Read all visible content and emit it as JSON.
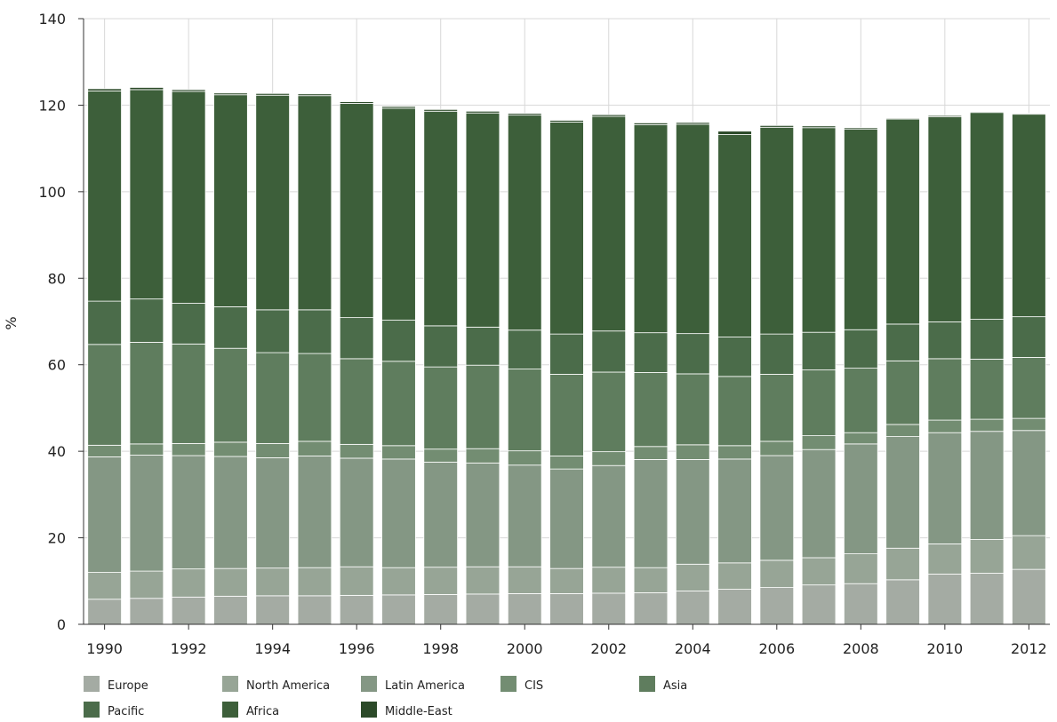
{
  "chart_data": {
    "type": "bar",
    "stacked": true,
    "title": "",
    "xlabel": "",
    "ylabel": "%",
    "ylim": [
      0,
      140
    ],
    "yticks": [
      0,
      20,
      40,
      60,
      80,
      100,
      120,
      140
    ],
    "grid": true,
    "legend_position": "bottom-left",
    "categories": [
      "1990",
      "1991",
      "1992",
      "1993",
      "1994",
      "1995",
      "1996",
      "1997",
      "1998",
      "1999",
      "2000",
      "2001",
      "2002",
      "2003",
      "2004",
      "2005",
      "2006",
      "2007",
      "2008",
      "2009",
      "2010",
      "2011",
      "2012"
    ],
    "x_tick_labels": [
      "1990",
      "1992",
      "1994",
      "1996",
      "1998",
      "2000",
      "2002",
      "2004",
      "2006",
      "2008",
      "2010",
      "2012"
    ],
    "series": [
      {
        "name": "Europe",
        "color": "#a4aba3",
        "values": [
          5.8,
          6.0,
          6.3,
          6.5,
          6.6,
          6.6,
          6.7,
          6.8,
          6.9,
          7.0,
          7.1,
          7.1,
          7.2,
          7.3,
          7.7,
          8.1,
          8.5,
          9.1,
          9.4,
          10.3,
          11.6,
          11.8,
          12.7
        ]
      },
      {
        "name": "North America",
        "color": "#97a596",
        "values": [
          6.2,
          6.3,
          6.5,
          6.4,
          6.4,
          6.5,
          6.6,
          6.3,
          6.3,
          6.3,
          6.2,
          5.8,
          6.0,
          5.8,
          6.2,
          6.1,
          6.3,
          6.3,
          6.9,
          7.3,
          7.0,
          7.8,
          7.8
        ]
      },
      {
        "name": "Latin America",
        "color": "#849784",
        "values": [
          26.7,
          26.8,
          26.2,
          25.9,
          25.5,
          25.8,
          25.1,
          25.1,
          24.3,
          24.0,
          23.5,
          23.0,
          23.5,
          25.0,
          24.2,
          24.0,
          24.2,
          25.0,
          25.4,
          25.8,
          25.7,
          25.0,
          24.3
        ]
      },
      {
        "name": "CIS",
        "color": "#738d72",
        "values": [
          2.7,
          2.6,
          2.8,
          3.3,
          3.3,
          3.4,
          3.2,
          3.1,
          3.0,
          3.3,
          3.3,
          3.0,
          3.2,
          3.0,
          3.4,
          3.1,
          3.3,
          3.2,
          2.6,
          2.8,
          2.9,
          2.8,
          2.8
        ]
      },
      {
        "name": "Asia",
        "color": "#5f7d5e",
        "values": [
          23.3,
          23.5,
          23.0,
          21.7,
          21.0,
          20.3,
          19.8,
          19.5,
          19.0,
          19.3,
          18.9,
          18.9,
          18.4,
          17.1,
          16.4,
          16.0,
          15.5,
          15.2,
          14.9,
          14.7,
          14.2,
          13.9,
          14.1
        ]
      },
      {
        "name": "Pacific",
        "color": "#4b6c4a",
        "values": [
          10.0,
          10.0,
          9.4,
          9.6,
          9.9,
          10.1,
          9.5,
          9.5,
          9.5,
          8.8,
          9.0,
          9.3,
          9.5,
          9.2,
          9.3,
          9.1,
          9.3,
          8.7,
          8.9,
          8.5,
          8.5,
          9.2,
          9.4
        ]
      },
      {
        "name": "Africa",
        "color": "#3d5f3a",
        "values": [
          48.6,
          48.4,
          49.0,
          49.0,
          49.6,
          49.5,
          49.5,
          49.0,
          49.6,
          49.5,
          49.7,
          49.0,
          49.6,
          48.1,
          48.4,
          46.8,
          47.8,
          47.3,
          46.4,
          47.4,
          47.4,
          47.8,
          46.8
        ]
      },
      {
        "name": "Middle-East",
        "color": "#2c4a29",
        "values": [
          0.5,
          0.5,
          0.4,
          0.4,
          0.4,
          0.4,
          0.4,
          0.4,
          0.4,
          0.4,
          0.4,
          0.4,
          0.4,
          0.4,
          0.4,
          0.8,
          0.4,
          0.4,
          0.3,
          0.2,
          0.3,
          0.2,
          0.2
        ]
      }
    ]
  }
}
